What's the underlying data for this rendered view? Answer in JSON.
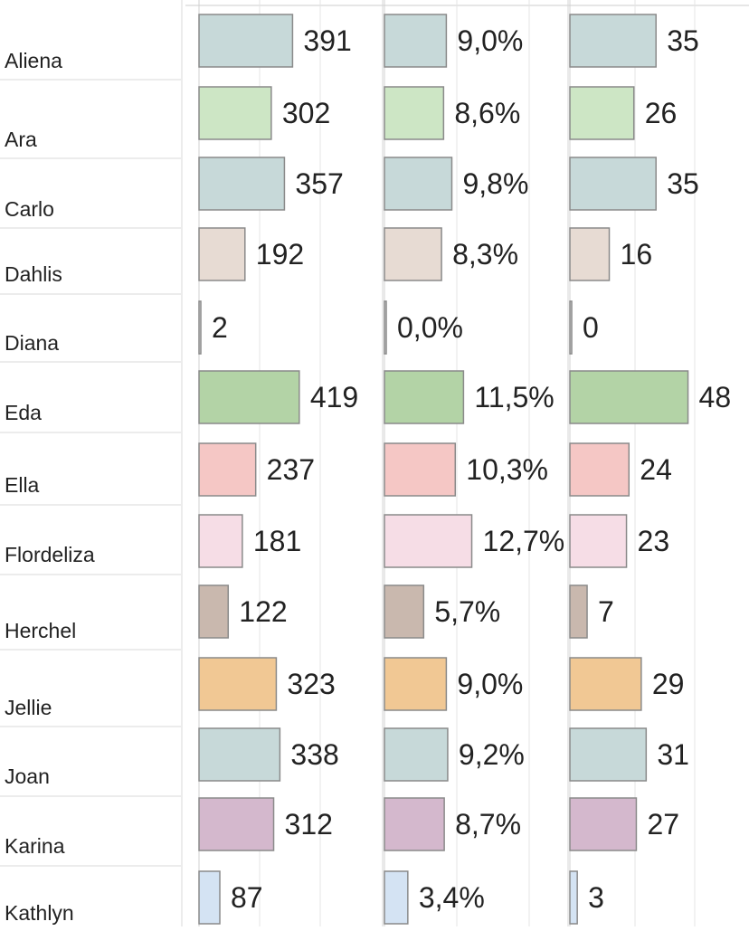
{
  "chart_data": {
    "type": "bar",
    "orientation": "horizontal",
    "categories": [
      "Aliena",
      "Ara",
      "Carlo",
      "Dahlis",
      "Diana",
      "Eda",
      "Ella",
      "Flordeliza",
      "Herchel",
      "Jellie",
      "Joan",
      "Karina",
      "Kathlyn"
    ],
    "category_colors": [
      "#c7d9d9",
      "#cde6c5",
      "#c7d9d9",
      "#e7dbd3",
      "#e0e0e0",
      "#b3d3a6",
      "#f5c7c5",
      "#f6dde6",
      "#c9b8ae",
      "#f1c894",
      "#c7d9d9",
      "#d4b8cd",
      "#d4e3f3"
    ],
    "panels": [
      {
        "values": [
          391,
          302,
          357,
          192,
          2,
          419,
          237,
          181,
          122,
          323,
          338,
          312,
          87
        ],
        "labels": [
          "391",
          "302",
          "357",
          "192",
          "2",
          "419",
          "237",
          "181",
          "122",
          "323",
          "338",
          "312",
          "87"
        ],
        "xlim": [
          0,
          580
        ]
      },
      {
        "values": [
          9.0,
          8.6,
          9.8,
          8.3,
          0.0,
          11.5,
          10.3,
          12.7,
          5.7,
          9.0,
          9.2,
          8.7,
          3.4
        ],
        "labels": [
          "9,0%",
          "8,6%",
          "9,8%",
          "8,3%",
          "0,0%",
          "11,5%",
          "10,3%",
          "12,7%",
          "5,7%",
          "9,0%",
          "9,2%",
          "8,7%",
          "3,4%"
        ],
        "xlim": [
          0,
          25
        ]
      },
      {
        "values": [
          35,
          26,
          35,
          16,
          0,
          48,
          24,
          23,
          7,
          29,
          31,
          27,
          3
        ],
        "labels": [
          "35",
          "26",
          "35",
          "16",
          "0",
          "48",
          "24",
          "23",
          "7",
          "29",
          "31",
          "27",
          "3"
        ],
        "xlim": [
          0,
          54
        ]
      }
    ],
    "grid": true
  }
}
